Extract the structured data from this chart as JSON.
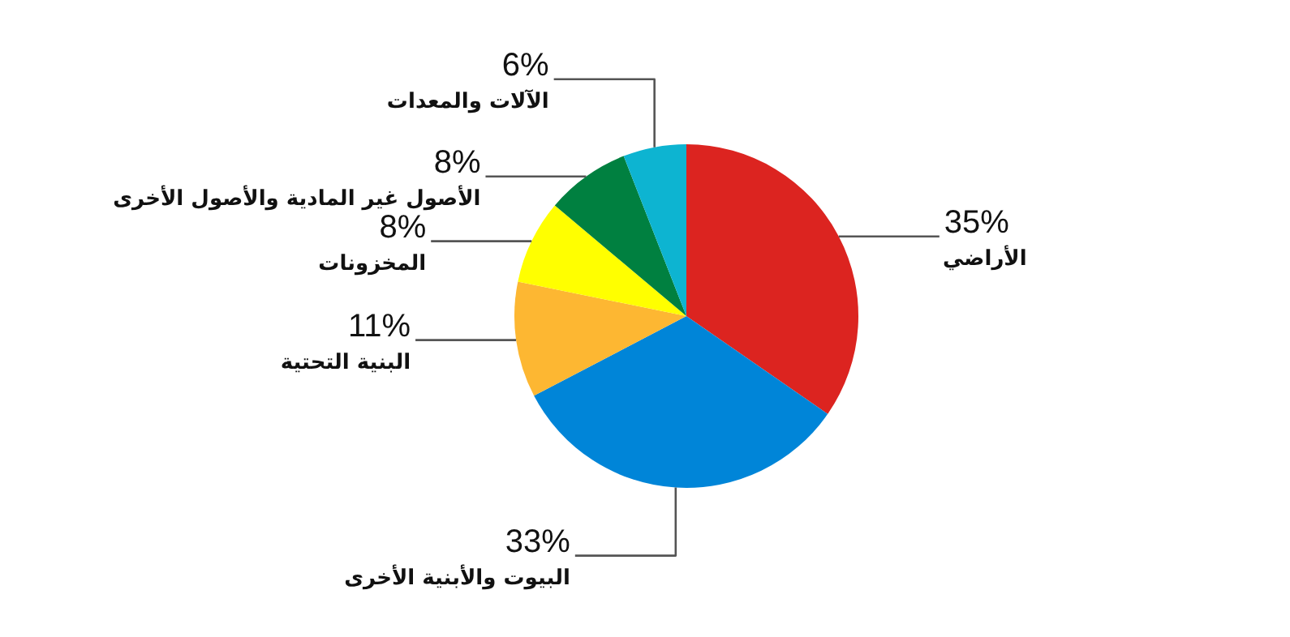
{
  "chart_data": {
    "type": "pie",
    "categories": [
      "الأراضي",
      "البيوت والأبنية الأخرى",
      "البنية التحتية",
      "المخزونات",
      "الأصول غير المادية والأصول الأخرى",
      "الآلات والمعدات"
    ],
    "values": [
      35,
      33,
      11,
      8,
      8,
      6
    ],
    "colors": [
      "#dc2420",
      "#0085d8",
      "#fdb732",
      "#ffff00",
      "#008040",
      "#0db4d1"
    ],
    "value_labels": [
      "35%",
      "33%",
      "11%",
      "8%",
      "8%",
      "6%"
    ],
    "legend": false
  }
}
